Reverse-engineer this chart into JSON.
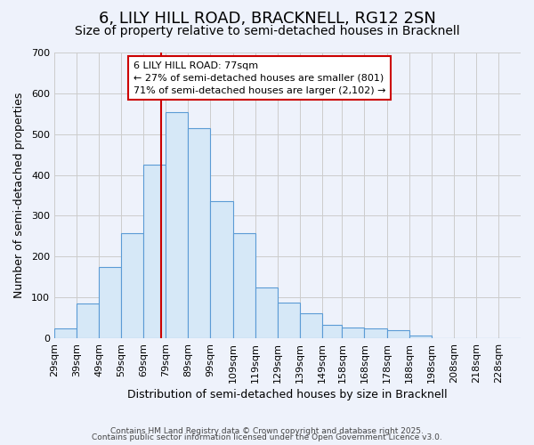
{
  "title": "6, LILY HILL ROAD, BRACKNELL, RG12 2SN",
  "subtitle": "Size of property relative to semi-detached houses in Bracknell",
  "xlabel": "Distribution of semi-detached houses by size in Bracknell",
  "ylabel": "Number of semi-detached properties",
  "bin_labels": [
    "29sqm",
    "39sqm",
    "49sqm",
    "59sqm",
    "69sqm",
    "79sqm",
    "89sqm",
    "99sqm",
    "109sqm",
    "119sqm",
    "129sqm",
    "139sqm",
    "149sqm",
    "158sqm",
    "168sqm",
    "178sqm",
    "188sqm",
    "198sqm",
    "208sqm",
    "218sqm",
    "228sqm"
  ],
  "bin_left_edges": [
    29,
    39,
    49,
    59,
    69,
    79,
    89,
    99,
    109,
    119,
    129,
    139,
    149,
    158,
    168,
    178,
    188,
    198,
    208,
    218,
    228
  ],
  "counts": [
    25,
    85,
    175,
    258,
    425,
    555,
    515,
    335,
    258,
    125,
    88,
    62,
    33,
    27,
    25,
    20,
    7,
    0,
    0,
    0,
    0
  ],
  "bar_facecolor": "#d6e8f7",
  "bar_edgecolor": "#5b9bd5",
  "grid_color": "#cccccc",
  "background_color": "#eef2fb",
  "marker_value": 77,
  "marker_color": "#cc0000",
  "annotation_title": "6 LILY HILL ROAD: 77sqm",
  "annotation_line1": "← 27% of semi-detached houses are smaller (801)",
  "annotation_line2": "71% of semi-detached houses are larger (2,102) →",
  "annotation_box_edgecolor": "#cc0000",
  "footer1": "Contains HM Land Registry data © Crown copyright and database right 2025.",
  "footer2": "Contains public sector information licensed under the Open Government Licence v3.0.",
  "ylim": [
    0,
    700
  ],
  "yticks": [
    0,
    100,
    200,
    300,
    400,
    500,
    600,
    700
  ],
  "title_fontsize": 13,
  "subtitle_fontsize": 10,
  "xlabel_fontsize": 9,
  "ylabel_fontsize": 9,
  "tick_fontsize": 8,
  "footer_fontsize": 6.5
}
